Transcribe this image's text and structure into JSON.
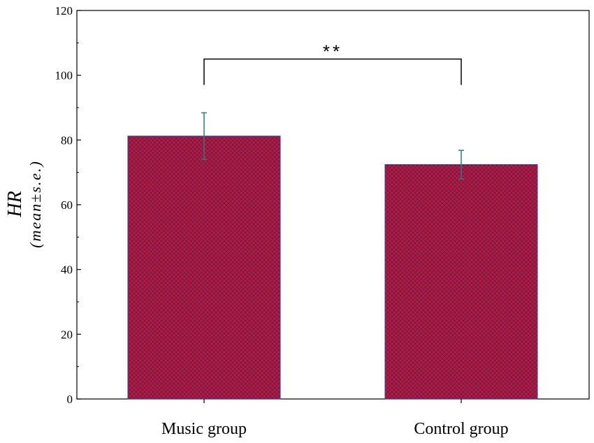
{
  "chart_data": {
    "type": "bar",
    "categories": [
      "Music group",
      "Control group"
    ],
    "values": [
      81.2,
      72.4
    ],
    "errors": [
      7.2,
      4.4
    ],
    "ylabel_main": "HR",
    "ylabel_sub": "(mean±s.e.)",
    "ylim": [
      0,
      120
    ],
    "yticks": [
      0,
      20,
      40,
      60,
      80,
      100,
      120
    ],
    "significance": {
      "label": "**",
      "bracket_y": 97,
      "bracket_top": 105
    },
    "grid": false,
    "colors": {
      "bar_fill": "#d0112b",
      "bar_hatch": "#3a2a6a",
      "error_bar": "#2a7d7d",
      "axis": "#000000"
    }
  }
}
